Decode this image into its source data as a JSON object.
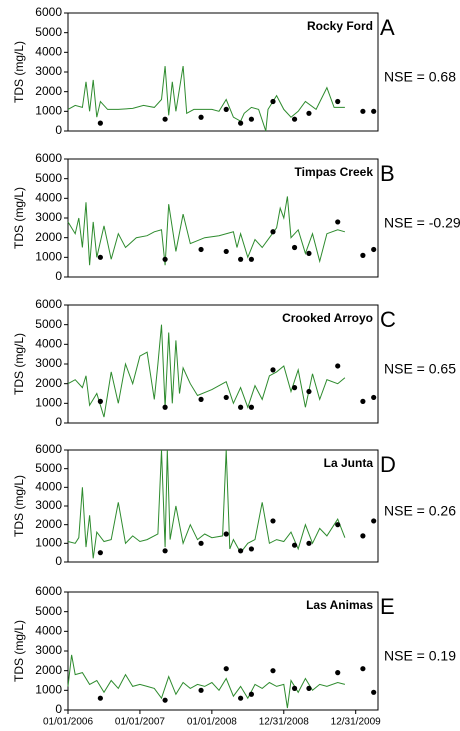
{
  "chart_data": [
    {
      "type": "line",
      "title": "Rocky Ford",
      "panel_label": "A",
      "annotation": "NSE = 0.68",
      "ylabel": "TDS (mg/L)",
      "xlim": [
        2006,
        2010.31
      ],
      "ylim": [
        0,
        6000
      ],
      "yticks": [
        0,
        1000,
        2000,
        3000,
        4000,
        5000,
        6000
      ],
      "series": [
        {
          "mode": "line",
          "color": "#2e8b2e",
          "x": [
            2006.0,
            2006.1,
            2006.2,
            2006.25,
            2006.3,
            2006.35,
            2006.4,
            2006.45,
            2006.55,
            2006.7,
            2006.9,
            2007.05,
            2007.2,
            2007.3,
            2007.35,
            2007.4,
            2007.45,
            2007.5,
            2007.6,
            2007.65,
            2007.75,
            2008.0,
            2008.1,
            2008.2,
            2008.3,
            2008.4,
            2008.45,
            2008.55,
            2008.65,
            2008.75,
            2008.78,
            2008.9,
            2009.0,
            2009.1,
            2009.2,
            2009.3,
            2009.45,
            2009.6,
            2009.7,
            2009.85
          ],
          "values": [
            1100,
            1300,
            1200,
            2500,
            1000,
            2600,
            700,
            1500,
            1100,
            1100,
            1150,
            1300,
            1200,
            1600,
            3300,
            800,
            2500,
            1000,
            3300,
            900,
            1100,
            1100,
            1000,
            1600,
            700,
            500,
            900,
            1200,
            1100,
            0,
            1100,
            1800,
            1100,
            700,
            1000,
            1500,
            1100,
            2200,
            1200,
            1200
          ]
        },
        {
          "mode": "markers",
          "color": "#000000",
          "x": [
            2006.45,
            2007.35,
            2007.85,
            2008.2,
            2008.4,
            2008.55,
            2008.85,
            2009.15,
            2009.35,
            2009.75,
            2010.1,
            2010.25
          ],
          "values": [
            400,
            600,
            700,
            1100,
            400,
            600,
            1500,
            600,
            900,
            1500,
            1000,
            1000
          ]
        }
      ]
    },
    {
      "type": "line",
      "title": "Timpas Creek",
      "panel_label": "B",
      "annotation": "NSE = -0.29",
      "ylabel": "TDS (mg/L)",
      "xlim": [
        2006,
        2010.31
      ],
      "ylim": [
        0,
        6000
      ],
      "yticks": [
        0,
        1000,
        2000,
        3000,
        4000,
        5000,
        6000
      ],
      "series": [
        {
          "mode": "line",
          "color": "#2e8b2e",
          "x": [
            2006.0,
            2006.1,
            2006.15,
            2006.2,
            2006.25,
            2006.3,
            2006.35,
            2006.4,
            2006.5,
            2006.6,
            2006.7,
            2006.8,
            2006.95,
            2007.1,
            2007.2,
            2007.3,
            2007.35,
            2007.4,
            2007.5,
            2007.6,
            2007.7,
            2007.9,
            2008.1,
            2008.3,
            2008.35,
            2008.4,
            2008.5,
            2008.6,
            2008.7,
            2008.8,
            2008.9,
            2008.95,
            2009.0,
            2009.05,
            2009.1,
            2009.2,
            2009.3,
            2009.4,
            2009.5,
            2009.6,
            2009.75,
            2009.85
          ],
          "values": [
            2800,
            2200,
            3000,
            1500,
            3800,
            600,
            2800,
            1000,
            2600,
            900,
            2200,
            1500,
            2000,
            2100,
            2300,
            2400,
            600,
            3700,
            1300,
            3200,
            1700,
            2000,
            2100,
            2300,
            1500,
            2200,
            1000,
            1900,
            1500,
            2000,
            2500,
            3500,
            3000,
            4100,
            2000,
            2400,
            1200,
            2200,
            800,
            2200,
            2400,
            2300
          ]
        },
        {
          "mode": "markers",
          "color": "#000000",
          "x": [
            2006.45,
            2007.35,
            2007.85,
            2008.2,
            2008.4,
            2008.55,
            2008.85,
            2009.15,
            2009.35,
            2009.75,
            2010.1,
            2010.25
          ],
          "values": [
            1000,
            900,
            1400,
            1300,
            900,
            900,
            2300,
            1500,
            1200,
            2800,
            1100,
            1400
          ]
        }
      ]
    },
    {
      "type": "line",
      "title": "Crooked Arroyo",
      "panel_label": "C",
      "annotation": "NSE = 0.65",
      "ylabel": "TDS (mg/L)",
      "xlim": [
        2006,
        2010.31
      ],
      "ylim": [
        0,
        6000
      ],
      "yticks": [
        0,
        1000,
        2000,
        3000,
        4000,
        5000,
        6000
      ],
      "series": [
        {
          "mode": "line",
          "color": "#2e8b2e",
          "x": [
            2006.0,
            2006.1,
            2006.2,
            2006.25,
            2006.3,
            2006.4,
            2006.5,
            2006.6,
            2006.7,
            2006.8,
            2006.9,
            2007.0,
            2007.1,
            2007.2,
            2007.25,
            2007.3,
            2007.35,
            2007.4,
            2007.45,
            2007.5,
            2007.55,
            2007.6,
            2007.7,
            2007.8,
            2008.0,
            2008.2,
            2008.3,
            2008.4,
            2008.5,
            2008.6,
            2008.7,
            2008.8,
            2008.9,
            2009.0,
            2009.1,
            2009.2,
            2009.3,
            2009.4,
            2009.5,
            2009.6,
            2009.75,
            2009.85
          ],
          "values": [
            2000,
            2200,
            1800,
            2400,
            900,
            1500,
            300,
            2600,
            1000,
            3000,
            2000,
            3400,
            3600,
            1200,
            3000,
            5000,
            800,
            4600,
            1000,
            4200,
            1500,
            2800,
            2000,
            1400,
            1700,
            2100,
            1000,
            1800,
            800,
            1900,
            1200,
            2400,
            2600,
            2900,
            1600,
            2700,
            800,
            2500,
            1200,
            2200,
            2000,
            2300
          ]
        },
        {
          "mode": "markers",
          "color": "#000000",
          "x": [
            2006.45,
            2007.35,
            2007.85,
            2008.2,
            2008.4,
            2008.55,
            2008.85,
            2009.15,
            2009.35,
            2009.75,
            2010.1,
            2010.25
          ],
          "values": [
            1100,
            800,
            1200,
            1300,
            800,
            800,
            2700,
            1800,
            1600,
            2900,
            1100,
            1300
          ]
        }
      ]
    },
    {
      "type": "line",
      "title": "La Junta",
      "panel_label": "D",
      "annotation": "NSE = 0.26",
      "ylabel": "TDS (mg/L)",
      "xlim": [
        2006,
        2010.31
      ],
      "ylim": [
        0,
        6000
      ],
      "yticks": [
        0,
        1000,
        2000,
        3000,
        4000,
        5000,
        6000
      ],
      "series": [
        {
          "mode": "line",
          "color": "#2e8b2e",
          "x": [
            2006.0,
            2006.1,
            2006.15,
            2006.2,
            2006.25,
            2006.3,
            2006.35,
            2006.4,
            2006.5,
            2006.6,
            2006.7,
            2006.8,
            2006.9,
            2007.0,
            2007.1,
            2007.25,
            2007.3,
            2007.35,
            2007.38,
            2007.42,
            2007.5,
            2007.6,
            2007.7,
            2007.8,
            2007.9,
            2008.0,
            2008.15,
            2008.2,
            2008.25,
            2008.3,
            2008.4,
            2008.5,
            2008.6,
            2008.7,
            2008.8,
            2008.9,
            2009.0,
            2009.1,
            2009.2,
            2009.3,
            2009.4,
            2009.5,
            2009.6,
            2009.75,
            2009.85
          ],
          "values": [
            1100,
            1000,
            1300,
            4000,
            800,
            2500,
            200,
            1600,
            1100,
            1200,
            3200,
            1000,
            1400,
            1100,
            1200,
            1500,
            6000,
            800,
            6000,
            1200,
            3000,
            1000,
            2000,
            1200,
            1500,
            1300,
            1400,
            6000,
            700,
            1200,
            500,
            1000,
            1200,
            3200,
            1000,
            1200,
            1100,
            1600,
            700,
            2000,
            1000,
            1800,
            1400,
            2300,
            1300
          ]
        },
        {
          "mode": "markers",
          "color": "#000000",
          "x": [
            2006.45,
            2007.35,
            2007.85,
            2008.2,
            2008.4,
            2008.55,
            2008.85,
            2009.15,
            2009.35,
            2009.75,
            2010.1,
            2010.25
          ],
          "values": [
            500,
            600,
            1000,
            1500,
            600,
            700,
            2200,
            900,
            1000,
            2000,
            1400,
            2200
          ]
        }
      ]
    },
    {
      "type": "line",
      "title": "Las Animas",
      "panel_label": "E",
      "annotation": "NSE = 0.19",
      "ylabel": "TDS (mg/L)",
      "xlim": [
        2006,
        2010.31
      ],
      "ylim": [
        0,
        6000
      ],
      "yticks": [
        0,
        1000,
        2000,
        3000,
        4000,
        5000,
        6000
      ],
      "xticks": [
        {
          "value": 2006,
          "label": "01/01/2006"
        },
        {
          "value": 2007,
          "label": "01/01/2007"
        },
        {
          "value": 2008,
          "label": "01/01/2008"
        },
        {
          "value": 2009,
          "label": "12/31/2008"
        },
        {
          "value": 2010,
          "label": "12/31/2009"
        }
      ],
      "series": [
        {
          "mode": "line",
          "color": "#2e8b2e",
          "x": [
            2006.0,
            2006.05,
            2006.1,
            2006.2,
            2006.3,
            2006.4,
            2006.5,
            2006.6,
            2006.7,
            2006.8,
            2006.9,
            2007.0,
            2007.1,
            2007.2,
            2007.3,
            2007.4,
            2007.5,
            2007.6,
            2007.7,
            2007.8,
            2007.9,
            2008.0,
            2008.1,
            2008.2,
            2008.3,
            2008.4,
            2008.5,
            2008.6,
            2008.7,
            2008.8,
            2008.9,
            2009.0,
            2009.05,
            2009.1,
            2009.2,
            2009.3,
            2009.4,
            2009.5,
            2009.6,
            2009.75,
            2009.85
          ],
          "values": [
            1200,
            2800,
            1800,
            1900,
            1300,
            1500,
            900,
            1500,
            1100,
            1800,
            1200,
            1300,
            1200,
            1100,
            600,
            1700,
            800,
            1400,
            1100,
            1300,
            1200,
            1400,
            1000,
            1600,
            700,
            1200,
            600,
            1300,
            1100,
            1400,
            1200,
            1300,
            100,
            1500,
            900,
            1600,
            1000,
            1300,
            1200,
            1400,
            1300
          ]
        },
        {
          "mode": "markers",
          "color": "#000000",
          "x": [
            2006.45,
            2007.35,
            2007.85,
            2008.2,
            2008.4,
            2008.55,
            2008.85,
            2009.15,
            2009.35,
            2009.75,
            2010.1,
            2010.25
          ],
          "values": [
            600,
            500,
            1000,
            2100,
            600,
            800,
            2000,
            1100,
            1100,
            1900,
            2100,
            900
          ]
        }
      ]
    }
  ]
}
